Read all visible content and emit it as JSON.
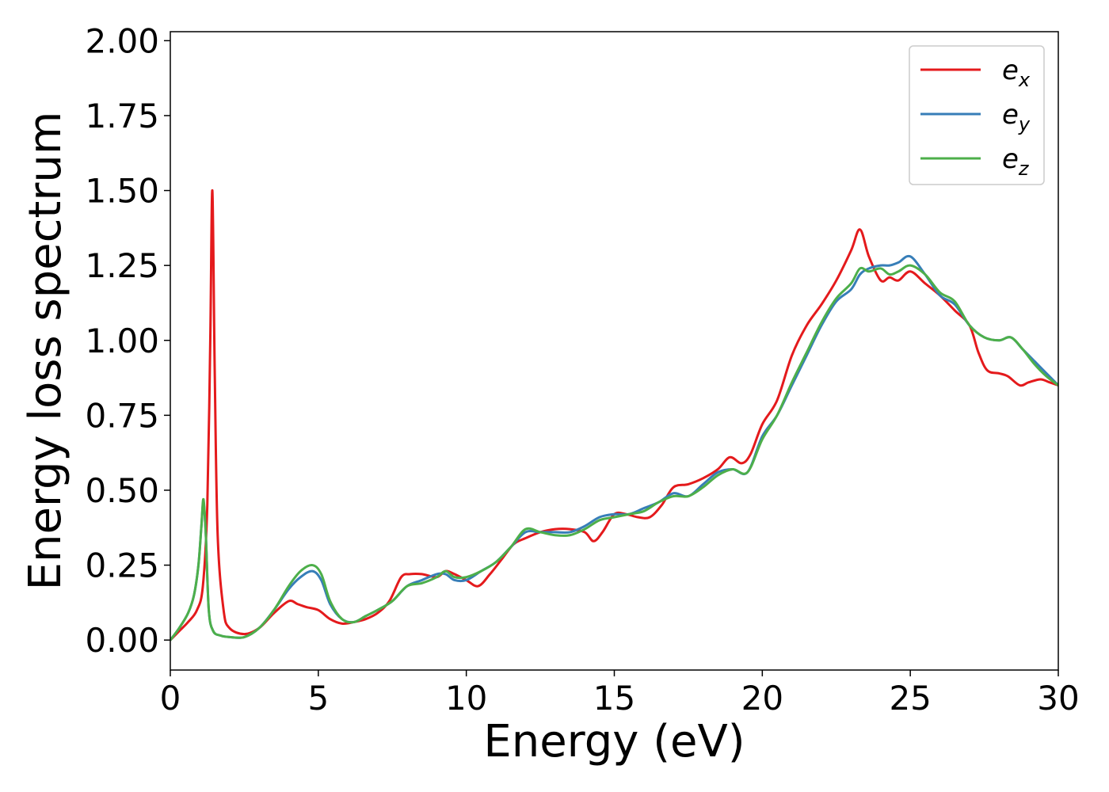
{
  "chart_data": {
    "type": "line",
    "title": "",
    "xlabel": "Energy (eV)",
    "ylabel": "Energy loss spectrum",
    "xlim": [
      0,
      30
    ],
    "ylim": [
      -0.1,
      2.03
    ],
    "xticks": [
      0,
      5,
      10,
      15,
      20,
      25,
      30
    ],
    "xtick_labels": [
      "0",
      "5",
      "10",
      "15",
      "20",
      "25",
      "30"
    ],
    "yticks": [
      0,
      0.25,
      0.5,
      0.75,
      1.0,
      1.25,
      1.5,
      1.75,
      2.0
    ],
    "ytick_labels": [
      "0.00",
      "0.25",
      "0.50",
      "0.75",
      "1.00",
      "1.25",
      "1.50",
      "1.75",
      "2.00"
    ],
    "grid": false,
    "legend_position": "top-right",
    "series": [
      {
        "name": "e_x",
        "legend_base": "e",
        "legend_sub": "x",
        "color": "#e41a1c",
        "x": [
          0,
          0.3,
          0.6,
          0.9,
          1.1,
          1.25,
          1.35,
          1.42,
          1.5,
          1.6,
          1.8,
          2.0,
          2.5,
          3.0,
          3.5,
          4.0,
          4.3,
          4.6,
          5.0,
          5.4,
          5.8,
          6.2,
          6.6,
          7.0,
          7.4,
          7.8,
          8.1,
          8.5,
          9.0,
          9.3,
          9.6,
          10.0,
          10.4,
          10.8,
          11.2,
          11.6,
          12.0,
          12.5,
          13.0,
          13.5,
          14.0,
          14.3,
          14.6,
          15.0,
          15.4,
          15.8,
          16.2,
          16.6,
          17.0,
          17.5,
          18.0,
          18.5,
          18.9,
          19.3,
          19.6,
          20.0,
          20.5,
          21.0,
          21.5,
          22.0,
          22.5,
          23.0,
          23.3,
          23.6,
          24.0,
          24.3,
          24.6,
          25.0,
          25.5,
          26.0,
          26.5,
          27.0,
          27.3,
          27.6,
          28.0,
          28.3,
          28.7,
          29.0,
          29.4,
          29.7,
          30.0
        ],
        "y": [
          0.0,
          0.03,
          0.06,
          0.1,
          0.18,
          0.45,
          1.0,
          1.5,
          0.9,
          0.35,
          0.1,
          0.04,
          0.02,
          0.04,
          0.09,
          0.13,
          0.12,
          0.11,
          0.1,
          0.07,
          0.055,
          0.06,
          0.07,
          0.09,
          0.13,
          0.21,
          0.22,
          0.22,
          0.21,
          0.23,
          0.22,
          0.2,
          0.18,
          0.22,
          0.27,
          0.32,
          0.34,
          0.36,
          0.37,
          0.37,
          0.36,
          0.33,
          0.36,
          0.42,
          0.42,
          0.41,
          0.41,
          0.45,
          0.51,
          0.52,
          0.54,
          0.57,
          0.61,
          0.59,
          0.62,
          0.72,
          0.8,
          0.95,
          1.05,
          1.12,
          1.2,
          1.3,
          1.37,
          1.28,
          1.2,
          1.21,
          1.2,
          1.23,
          1.19,
          1.15,
          1.1,
          1.05,
          0.96,
          0.9,
          0.89,
          0.88,
          0.85,
          0.86,
          0.87,
          0.86,
          0.85
        ]
      },
      {
        "name": "e_y",
        "legend_base": "e",
        "legend_sub": "y",
        "color": "#377eb8",
        "x": [
          0,
          0.3,
          0.6,
          0.8,
          0.95,
          1.05,
          1.12,
          1.2,
          1.3,
          1.45,
          1.7,
          2.0,
          2.5,
          3.0,
          3.5,
          4.0,
          4.4,
          4.8,
          5.1,
          5.4,
          5.8,
          6.2,
          6.6,
          7.0,
          7.5,
          8.0,
          8.5,
          9.0,
          9.3,
          9.6,
          10.0,
          10.5,
          11.0,
          11.5,
          12.0,
          12.5,
          13.0,
          13.5,
          14.0,
          14.5,
          15.0,
          15.5,
          16.0,
          16.5,
          17.0,
          17.5,
          18.0,
          18.5,
          19.0,
          19.5,
          20.0,
          20.5,
          21.0,
          21.5,
          22.0,
          22.5,
          23.0,
          23.3,
          23.6,
          24.0,
          24.3,
          24.6,
          25.0,
          25.5,
          26.0,
          26.5,
          27.0,
          27.5,
          28.0,
          28.4,
          28.8,
          29.2,
          29.6,
          30.0
        ],
        "y": [
          0.0,
          0.04,
          0.09,
          0.15,
          0.25,
          0.38,
          0.46,
          0.35,
          0.1,
          0.03,
          0.015,
          0.01,
          0.01,
          0.04,
          0.1,
          0.17,
          0.21,
          0.23,
          0.2,
          0.12,
          0.07,
          0.06,
          0.08,
          0.1,
          0.13,
          0.18,
          0.2,
          0.22,
          0.22,
          0.2,
          0.2,
          0.23,
          0.26,
          0.31,
          0.36,
          0.36,
          0.36,
          0.36,
          0.38,
          0.41,
          0.42,
          0.42,
          0.44,
          0.46,
          0.49,
          0.48,
          0.52,
          0.56,
          0.57,
          0.56,
          0.68,
          0.75,
          0.85,
          0.95,
          1.05,
          1.13,
          1.17,
          1.22,
          1.24,
          1.25,
          1.25,
          1.26,
          1.28,
          1.22,
          1.15,
          1.12,
          1.05,
          1.01,
          1.0,
          1.01,
          0.97,
          0.93,
          0.89,
          0.85
        ]
      },
      {
        "name": "e_z",
        "legend_base": "e",
        "legend_sub": "z",
        "color": "#4daf4a",
        "x": [
          0,
          0.3,
          0.6,
          0.8,
          0.95,
          1.05,
          1.12,
          1.2,
          1.3,
          1.45,
          1.7,
          2.0,
          2.5,
          3.0,
          3.5,
          4.0,
          4.4,
          4.8,
          5.1,
          5.4,
          5.8,
          6.2,
          6.6,
          7.0,
          7.5,
          8.0,
          8.5,
          9.0,
          9.3,
          9.6,
          10.0,
          10.5,
          11.0,
          11.5,
          12.0,
          12.5,
          13.0,
          13.5,
          14.0,
          14.5,
          15.0,
          15.5,
          16.0,
          16.5,
          17.0,
          17.5,
          18.0,
          18.5,
          19.0,
          19.5,
          20.0,
          20.5,
          21.0,
          21.5,
          22.0,
          22.5,
          23.0,
          23.3,
          23.6,
          24.0,
          24.3,
          24.6,
          25.0,
          25.5,
          26.0,
          26.5,
          27.0,
          27.5,
          28.0,
          28.4,
          28.8,
          29.2,
          29.6,
          30.0
        ],
        "y": [
          0.0,
          0.04,
          0.09,
          0.15,
          0.25,
          0.38,
          0.47,
          0.35,
          0.1,
          0.03,
          0.015,
          0.01,
          0.01,
          0.04,
          0.1,
          0.18,
          0.23,
          0.25,
          0.22,
          0.13,
          0.07,
          0.06,
          0.08,
          0.1,
          0.13,
          0.18,
          0.19,
          0.21,
          0.23,
          0.21,
          0.21,
          0.23,
          0.26,
          0.31,
          0.37,
          0.36,
          0.35,
          0.35,
          0.37,
          0.4,
          0.41,
          0.42,
          0.43,
          0.46,
          0.48,
          0.48,
          0.51,
          0.55,
          0.57,
          0.56,
          0.67,
          0.75,
          0.86,
          0.96,
          1.06,
          1.14,
          1.19,
          1.24,
          1.23,
          1.24,
          1.22,
          1.23,
          1.25,
          1.22,
          1.16,
          1.13,
          1.05,
          1.01,
          1.0,
          1.01,
          0.97,
          0.92,
          0.88,
          0.85
        ]
      }
    ]
  }
}
